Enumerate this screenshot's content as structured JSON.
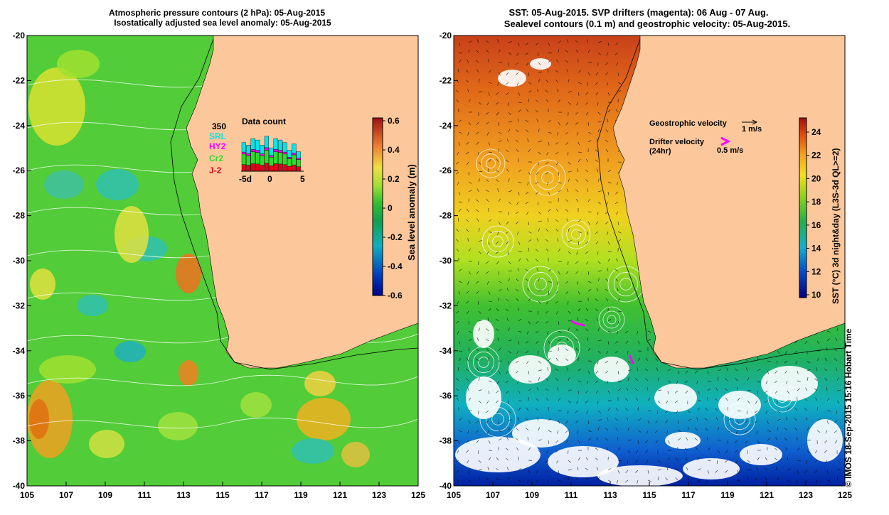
{
  "colors": {
    "land": "#fcc89b",
    "text_black": "#000000",
    "legend_red": "#e0001a",
    "legend_magenta": "#ff00ff",
    "legend_cyan": "#00e5ee",
    "legend_green": "#2cdc2c"
  },
  "left_panel": {
    "title_line1": "Atmospheric pressure contours (2 hPa): 05-Aug-2015",
    "title_line2": "Isostatically adjusted sea level anomaly: 05-Aug-2015",
    "x_ticks": [
      "105",
      "107",
      "109",
      "111",
      "113",
      "115",
      "117",
      "119",
      "121",
      "123",
      "125"
    ],
    "y_ticks": [
      "-20",
      "-22",
      "-24",
      "-26",
      "-28",
      "-30",
      "-32",
      "-34",
      "-36",
      "-38",
      "-40"
    ],
    "colorbar": {
      "label": "Sea level anomaly (m)",
      "ticks": [
        "0.6",
        "0.4",
        "0.2",
        "0",
        "-0.2",
        "-0.4",
        "-0.6"
      ],
      "range": [
        -0.6,
        0.6
      ]
    },
    "data_count": {
      "title": "Data count",
      "max_label": "350",
      "x_ticks": [
        "-5d",
        "0",
        "5"
      ],
      "legend": [
        "SRL",
        "HY2",
        "Cr2",
        "J-2"
      ],
      "legend_colors": [
        "#00e5ee",
        "#ff00ff",
        "#2cdc2c",
        "#e0001a"
      ],
      "day_totals": [
        220,
        200,
        250,
        240,
        200,
        270,
        180,
        250,
        240,
        220,
        160,
        210,
        150
      ]
    }
  },
  "right_panel": {
    "title_line1": "SST: 05-Aug-2015. SVP drifters (magenta): 06 Aug - 07 Aug.",
    "title_line2": "Sealevel contours (0.1 m) and geostrophic velocity: 05-Aug-2015.",
    "x_ticks": [
      "105",
      "107",
      "109",
      "111",
      "113",
      "115",
      "117",
      "119",
      "121",
      "123",
      "125"
    ],
    "y_ticks": [
      "-20",
      "-22",
      "-24",
      "-26",
      "-28",
      "-30",
      "-32",
      "-34",
      "-36",
      "-38",
      "-40"
    ],
    "colorbar": {
      "label": "SST (°C) 3d night&day (L3S-3d QL>=2)",
      "ticks": [
        "24",
        "22",
        "20",
        "18",
        "16",
        "14",
        "12",
        "10"
      ],
      "range": [
        10,
        25
      ]
    },
    "geostrophic_label": "Geostrophic velocity",
    "geostrophic_scale": "1 m/s",
    "drifter_label_line1": "Drifter velocity",
    "drifter_label_line2": "(24hr)",
    "drifter_scale": "0.5 m/s"
  },
  "footer": {
    "copyright": "© IMOS 18-Sep-2015 15:16 Hobart Time"
  }
}
